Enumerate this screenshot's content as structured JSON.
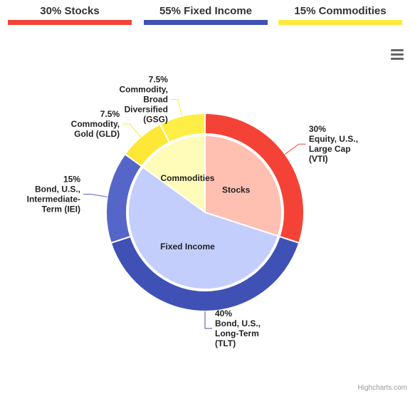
{
  "legend": [
    {
      "label": "30% Stocks",
      "color": "#f44336"
    },
    {
      "label": "55% Fixed Income",
      "color": "#3f51b5"
    },
    {
      "label": "15% Commodities",
      "color": "#ffeb3b"
    }
  ],
  "menu_icon": "hamburger-menu-icon",
  "credits": "Highcharts.com",
  "chart_data": {
    "type": "pie",
    "categories": [
      {
        "name": "Stocks",
        "y": 30,
        "color": "#ffc0b2"
      },
      {
        "name": "Fixed Income",
        "y": 55,
        "color": "#c3cefc"
      },
      {
        "name": "Commodities",
        "y": 15,
        "color": "#fffbb8"
      }
    ],
    "holdings": [
      {
        "lines": [
          "30%",
          "Equity, U.S.,",
          "Large Cap",
          "(VTI)"
        ],
        "y": 30,
        "color": "#f44336",
        "label_side": "right"
      },
      {
        "lines": [
          "40%",
          "Bond, U.S.,",
          "Long-Term",
          "(TLT)"
        ],
        "y": 40,
        "color": "#3f51b5",
        "label_side": "right"
      },
      {
        "lines": [
          "15%",
          "Bond, U.S.,",
          "Intermediate-",
          "Term (IEI)"
        ],
        "y": 15,
        "color": "#5565c8",
        "label_side": "left"
      },
      {
        "lines": [
          "7.5%",
          "Commodity,",
          "Gold (GLD)"
        ],
        "y": 7.5,
        "color": "#fde737",
        "label_side": "left"
      },
      {
        "lines": [
          "7.5%",
          "Commodity,",
          "Broad",
          "Diversified",
          "(GSG)"
        ],
        "y": 7.5,
        "color": "#ffee45",
        "label_side": "left"
      }
    ]
  }
}
